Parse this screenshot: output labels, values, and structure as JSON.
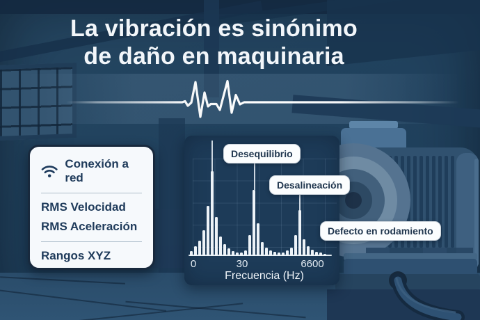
{
  "title": {
    "line1": "La vibración es sinónimo",
    "line2": "de daño en maquinaria"
  },
  "card": {
    "header": "Conexión a red",
    "items": [
      "RMS Velocidad",
      "RMS Aceleración"
    ],
    "footer": "Rangos XYZ"
  },
  "chart_data": {
    "type": "bar",
    "title": "",
    "xlabel": "Frecuencia (Hz)",
    "ylabel": "",
    "x_tick_labels": [
      "0",
      "30",
      "6600"
    ],
    "values": [
      7,
      14,
      22,
      37,
      72,
      122,
      56,
      28,
      17,
      11,
      7,
      5,
      5,
      8,
      30,
      95,
      47,
      20,
      12,
      8,
      6,
      5,
      5,
      8,
      12,
      30,
      66,
      24,
      14,
      9,
      6,
      5,
      3
    ],
    "ylim": [
      0,
      130
    ],
    "grid": true,
    "legend_position": "none",
    "annotations": [
      {
        "label": "Desequilibrio",
        "bar_index": 5
      },
      {
        "label": "Desalineación",
        "bar_index": 15
      },
      {
        "label": "Defecto en rodamiento",
        "bar_index": 26
      }
    ]
  },
  "colors": {
    "background": "#21425e",
    "panel_bg": "#1d3b58",
    "card_bg": "#f6f9fc",
    "bar": "#edf3f8",
    "text_dark": "#1e3a5a",
    "text_light": "#f2f6fa",
    "accent_line": "#ffffff"
  }
}
